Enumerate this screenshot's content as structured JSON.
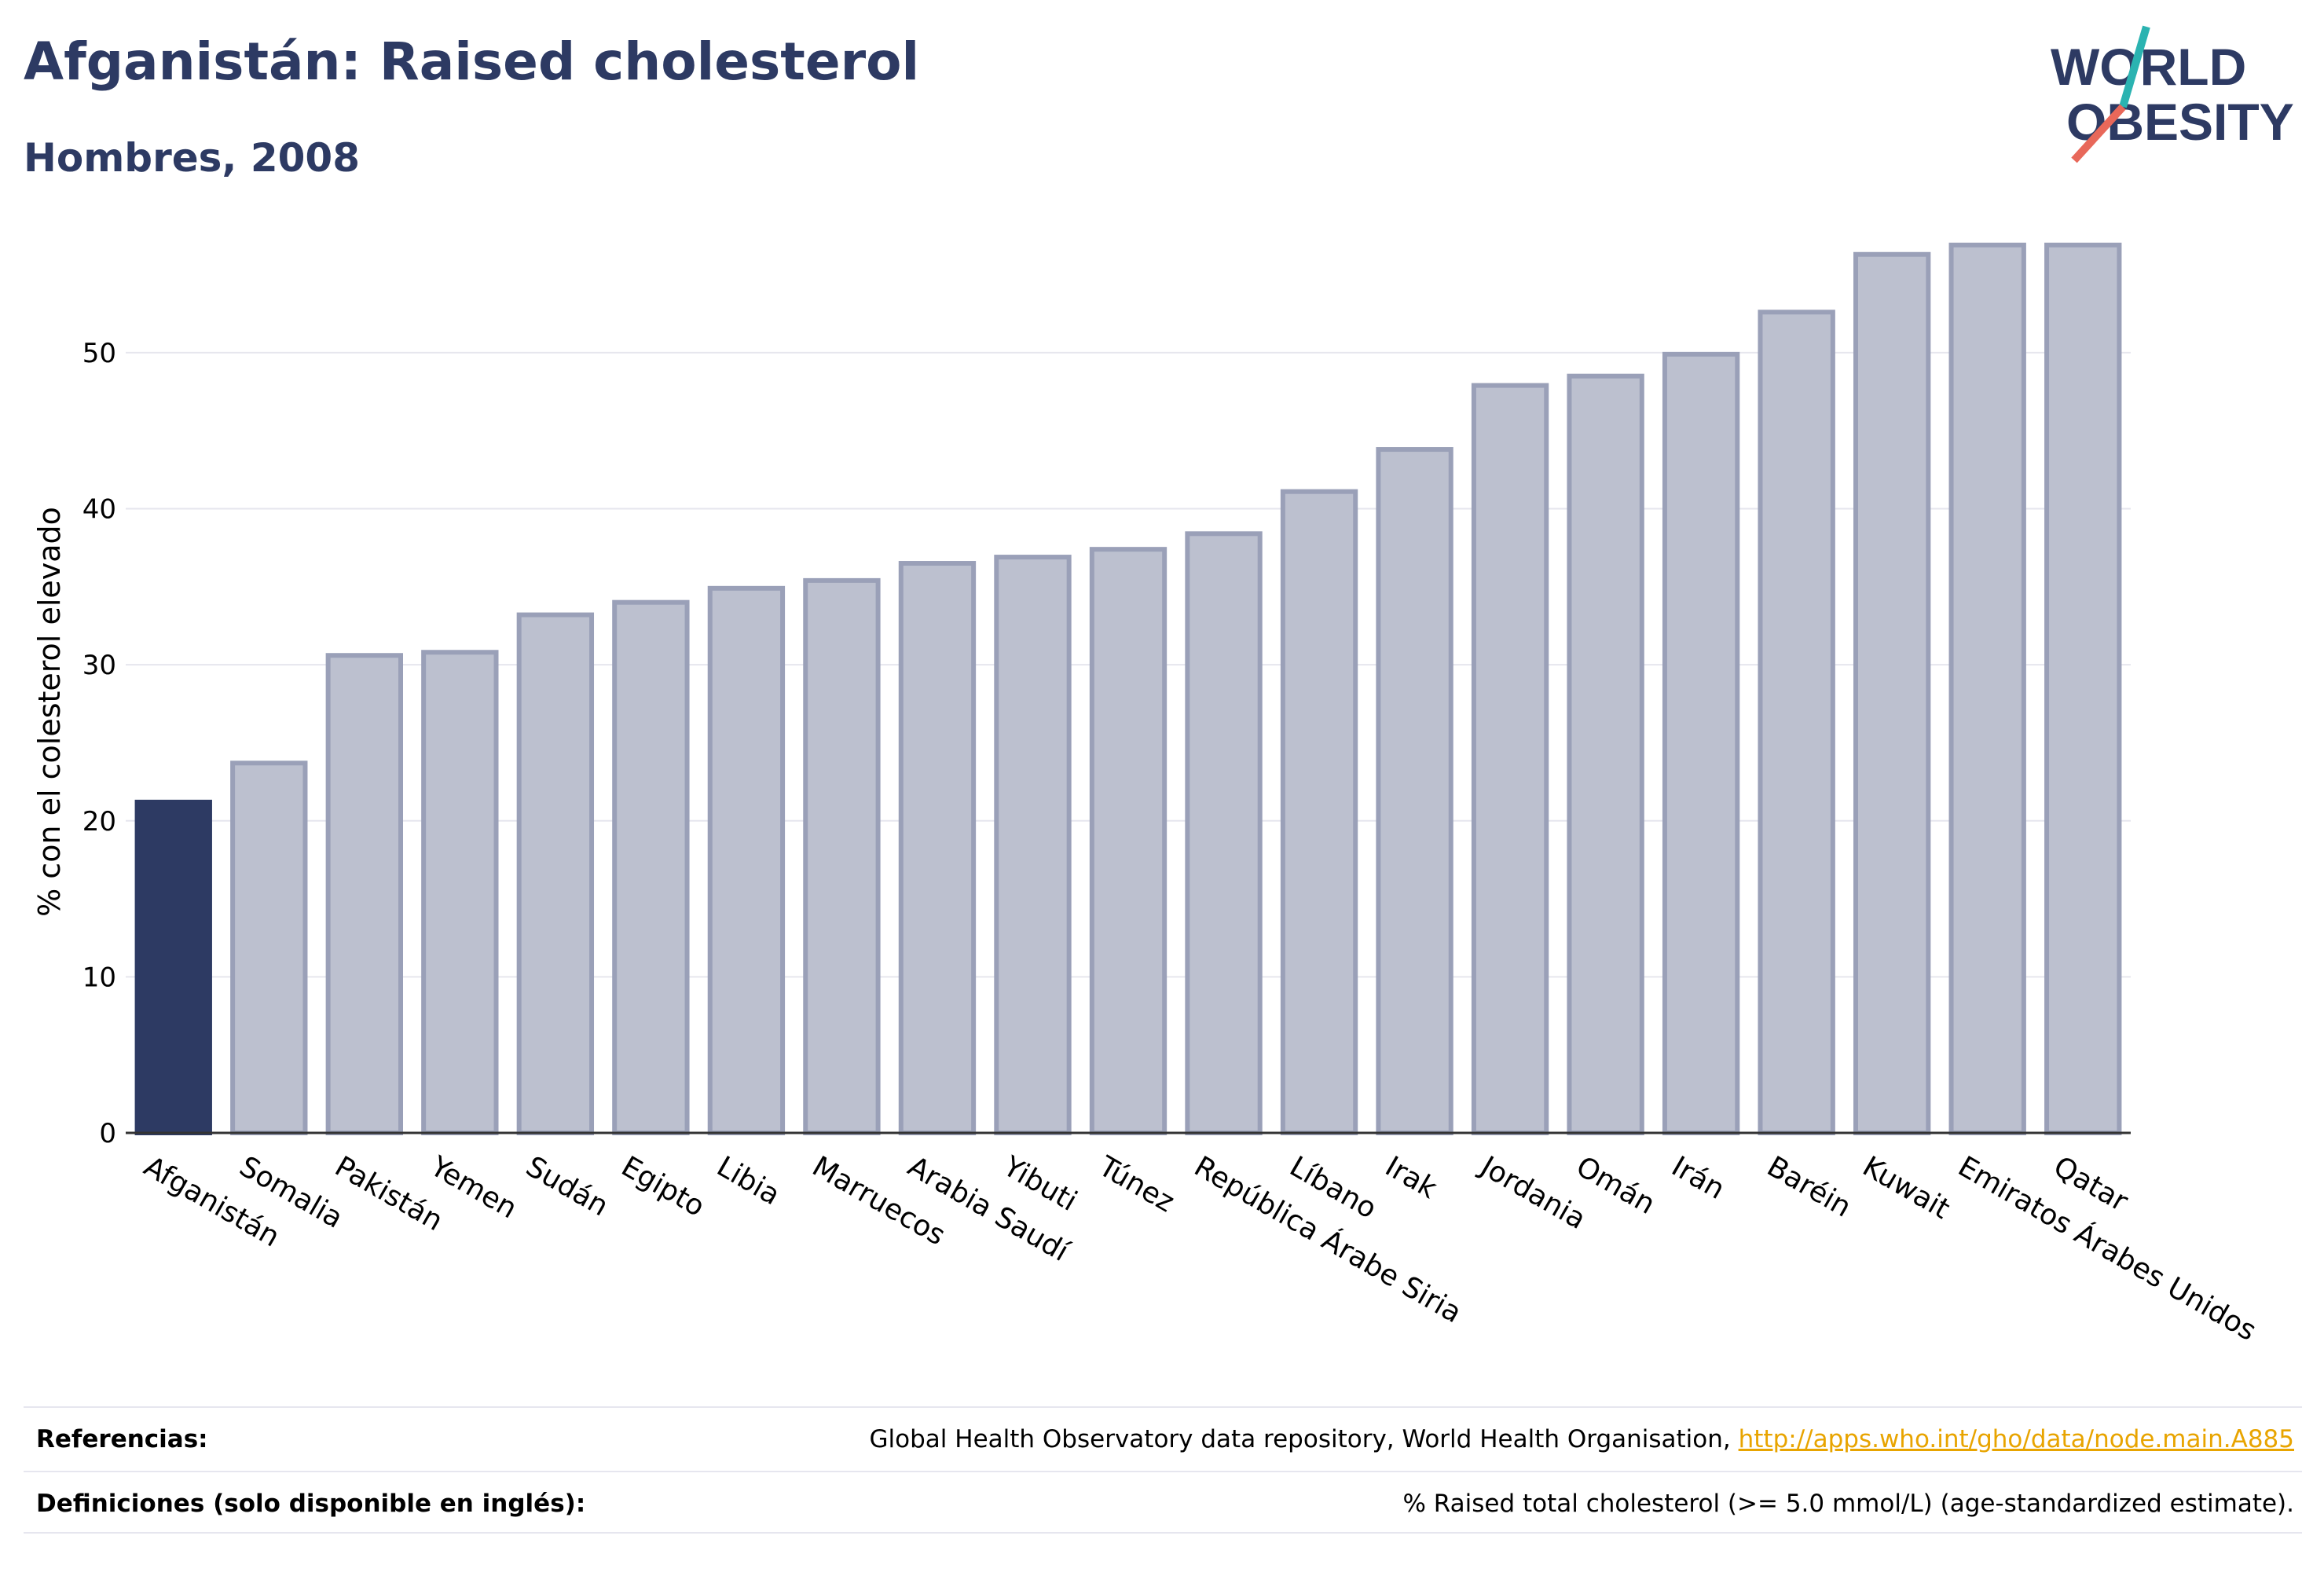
{
  "header": {
    "title": "Afganistán: Raised cholesterol",
    "subtitle": "Hombres, 2008"
  },
  "logo": {
    "line1": "WORLD",
    "line2": "OBESITY",
    "accent_teal": "#2bb3b1",
    "accent_red": "#e8685a"
  },
  "colors": {
    "highlight": "#2d3a63",
    "bar_fill": "#bcc0cf",
    "bar_stroke": "#9aa0b8",
    "text_dark": "#2d3a63"
  },
  "chart_data": {
    "type": "bar",
    "ylabel": "% con el colesterol elevado",
    "ylim": [
      0,
      58
    ],
    "yticks": [
      0,
      10,
      20,
      30,
      40,
      50
    ],
    "grid": true,
    "highlight": "Afganistán",
    "categories": [
      "Afganistán",
      "Somalia",
      "Pakistán",
      "Yemen",
      "Sudán",
      "Egipto",
      "Libia",
      "Marruecos",
      "Arabia Saudí",
      "Yibuti",
      "Túnez",
      "República Árabe Siria",
      "Líbano",
      "Irak",
      "Jordania",
      "Omán",
      "Irán",
      "Baréin",
      "Kuwait",
      "Emiratos Árabes Unidos",
      "Qatar"
    ],
    "values": [
      21.2,
      23.7,
      30.6,
      30.8,
      33.2,
      34.0,
      34.9,
      35.4,
      36.5,
      36.9,
      37.4,
      38.4,
      41.1,
      43.8,
      47.9,
      48.5,
      49.9,
      52.6,
      56.3,
      56.9,
      56.9
    ]
  },
  "footer": {
    "references_label": "Referencias:",
    "references_text": "Global Health Observatory data repository, World Health Organisation, ",
    "references_link": "http://apps.who.int/gho/data/node.main.A885",
    "definitions_label": "Definiciones (solo disponible en inglés):",
    "definitions_text": "% Raised total cholesterol (>= 5.0 mmol/L) (age-standardized estimate)."
  }
}
